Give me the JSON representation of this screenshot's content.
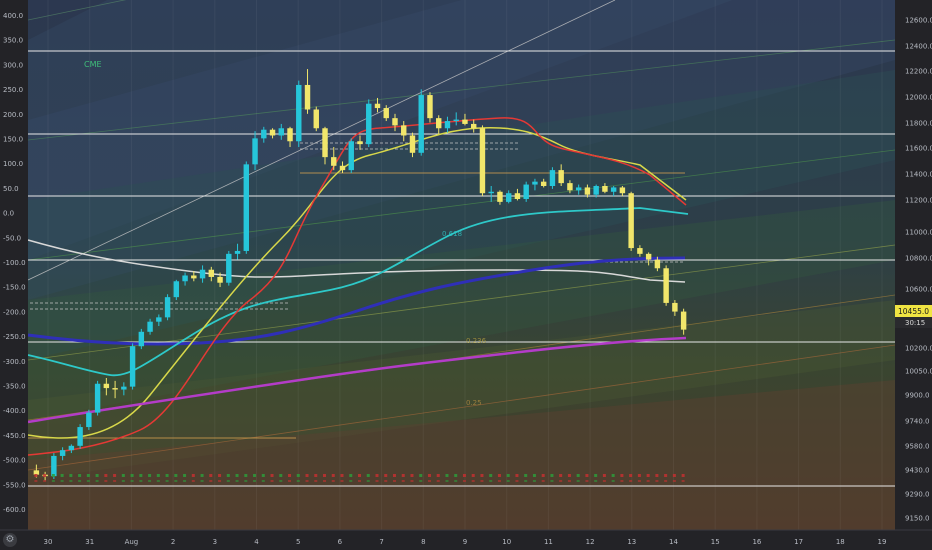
{
  "symbol_tag": "CME",
  "left_axis": {
    "labels": [
      "400.0",
      "350.0",
      "300.0",
      "250.0",
      "200.0",
      "150.0",
      "100.0",
      "50.0",
      "0.0",
      "-50.0",
      "-100.0",
      "-150.0",
      "-200.0",
      "-250.0",
      "-300.0",
      "-350.0",
      "-400.0",
      "-450.0",
      "-500.0",
      "-550.0",
      "-600.0"
    ]
  },
  "right_axis": {
    "labels": [
      "12600.0",
      "12400.0",
      "12200.0",
      "12000.0",
      "11800.0",
      "11600.0",
      "11400.0",
      "11200.0",
      "11000.0",
      "10800.0",
      "10600.0",
      "10200.0",
      "10050.0",
      "9900.0",
      "9740.0",
      "9580.0",
      "9430.0",
      "9290.0",
      "9150.0"
    ],
    "price_tag": "10455.0",
    "countdown": "30:15"
  },
  "time_axis": {
    "labels": [
      "30",
      "31",
      "Aug",
      "2",
      "3",
      "4",
      "5",
      "6",
      "7",
      "8",
      "9",
      "10",
      "11",
      "12",
      "13",
      "14",
      "15",
      "16",
      "17",
      "18",
      "19"
    ]
  },
  "fib_labels": [
    "0.618",
    "0.236",
    "0.25"
  ],
  "colors": {
    "background": "#26262b",
    "up_candle": "#26c6da",
    "down_candle": "#f1e66b",
    "sma_red": "#e53935",
    "sma_yellow": "#d8d84a",
    "sma_cyan": "#2ec9c9",
    "sma_navy": "#2f2fb8",
    "sma_white": "#d8d8d8",
    "sma_magenta": "#b33cc8",
    "price_tag_bg": "#f0e442"
  },
  "chart_data": {
    "type": "candlestick",
    "candles": [
      [
        9480,
        9520,
        9430,
        9450
      ],
      [
        9450,
        9470,
        9410,
        9440
      ],
      [
        9440,
        9600,
        9420,
        9580
      ],
      [
        9580,
        9640,
        9550,
        9620
      ],
      [
        9620,
        9660,
        9600,
        9650
      ],
      [
        9650,
        9800,
        9630,
        9780
      ],
      [
        9780,
        9900,
        9760,
        9880
      ],
      [
        9880,
        10100,
        9860,
        10080
      ],
      [
        10080,
        10120,
        10000,
        10050
      ],
      [
        10050,
        10100,
        9980,
        10040
      ],
      [
        10040,
        10090,
        10000,
        10060
      ],
      [
        10060,
        10360,
        10040,
        10340
      ],
      [
        10340,
        10460,
        10320,
        10440
      ],
      [
        10440,
        10530,
        10420,
        10510
      ],
      [
        10510,
        10560,
        10480,
        10540
      ],
      [
        10540,
        10700,
        10520,
        10680
      ],
      [
        10680,
        10800,
        10660,
        10790
      ],
      [
        10790,
        10850,
        10760,
        10830
      ],
      [
        10830,
        10860,
        10790,
        10810
      ],
      [
        10810,
        10900,
        10780,
        10870
      ],
      [
        10870,
        10890,
        10790,
        10820
      ],
      [
        10820,
        10850,
        10750,
        10780
      ],
      [
        10780,
        11000,
        10760,
        10980
      ],
      [
        10980,
        11050,
        10940,
        11000
      ],
      [
        11000,
        11620,
        10980,
        11600
      ],
      [
        11600,
        11830,
        11560,
        11780
      ],
      [
        11780,
        11860,
        11750,
        11840
      ],
      [
        11840,
        11850,
        11780,
        11800
      ],
      [
        11800,
        11880,
        11770,
        11850
      ],
      [
        11850,
        11860,
        11720,
        11760
      ],
      [
        11760,
        12180,
        11720,
        12150
      ],
      [
        12150,
        12260,
        11950,
        11980
      ],
      [
        11980,
        12000,
        11830,
        11850
      ],
      [
        11850,
        11860,
        11600,
        11650
      ],
      [
        11650,
        11720,
        11560,
        11590
      ],
      [
        11590,
        11620,
        11540,
        11560
      ],
      [
        11560,
        11780,
        11540,
        11760
      ],
      [
        11760,
        11800,
        11700,
        11740
      ],
      [
        11740,
        12050,
        11720,
        12020
      ],
      [
        12020,
        12060,
        11960,
        11990
      ],
      [
        11990,
        12010,
        11900,
        11920
      ],
      [
        11920,
        11950,
        11830,
        11870
      ],
      [
        11870,
        11900,
        11760,
        11800
      ],
      [
        11800,
        11820,
        11650,
        11680
      ],
      [
        11680,
        12120,
        11660,
        12080
      ],
      [
        12080,
        12100,
        11890,
        11920
      ],
      [
        11920,
        11940,
        11810,
        11850
      ],
      [
        11850,
        11930,
        11820,
        11900
      ],
      [
        11900,
        11960,
        11870,
        11910
      ],
      [
        11910,
        11950,
        11870,
        11880
      ],
      [
        11880,
        11910,
        11820,
        11850
      ],
      [
        11850,
        11870,
        11380,
        11400
      ],
      [
        11400,
        11450,
        11340,
        11410
      ],
      [
        11410,
        11420,
        11320,
        11340
      ],
      [
        11340,
        11420,
        11330,
        11400
      ],
      [
        11400,
        11430,
        11350,
        11360
      ],
      [
        11360,
        11480,
        11340,
        11460
      ],
      [
        11460,
        11500,
        11420,
        11480
      ],
      [
        11480,
        11500,
        11440,
        11450
      ],
      [
        11450,
        11580,
        11430,
        11560
      ],
      [
        11560,
        11600,
        11450,
        11470
      ],
      [
        11470,
        11490,
        11400,
        11420
      ],
      [
        11420,
        11460,
        11390,
        11440
      ],
      [
        11440,
        11460,
        11370,
        11390
      ],
      [
        11390,
        11460,
        11370,
        11450
      ],
      [
        11450,
        11470,
        11400,
        11410
      ],
      [
        11410,
        11450,
        11380,
        11440
      ],
      [
        11440,
        11450,
        11380,
        11400
      ],
      [
        11400,
        11410,
        11000,
        11020
      ],
      [
        11020,
        11040,
        10960,
        10980
      ],
      [
        10980,
        10990,
        10900,
        10940
      ],
      [
        10940,
        10960,
        10860,
        10880
      ],
      [
        10880,
        10900,
        10620,
        10640
      ],
      [
        10640,
        10660,
        10550,
        10580
      ],
      [
        10580,
        10600,
        10420,
        10455
      ]
    ],
    "ylim": [
      9150,
      12600
    ]
  }
}
